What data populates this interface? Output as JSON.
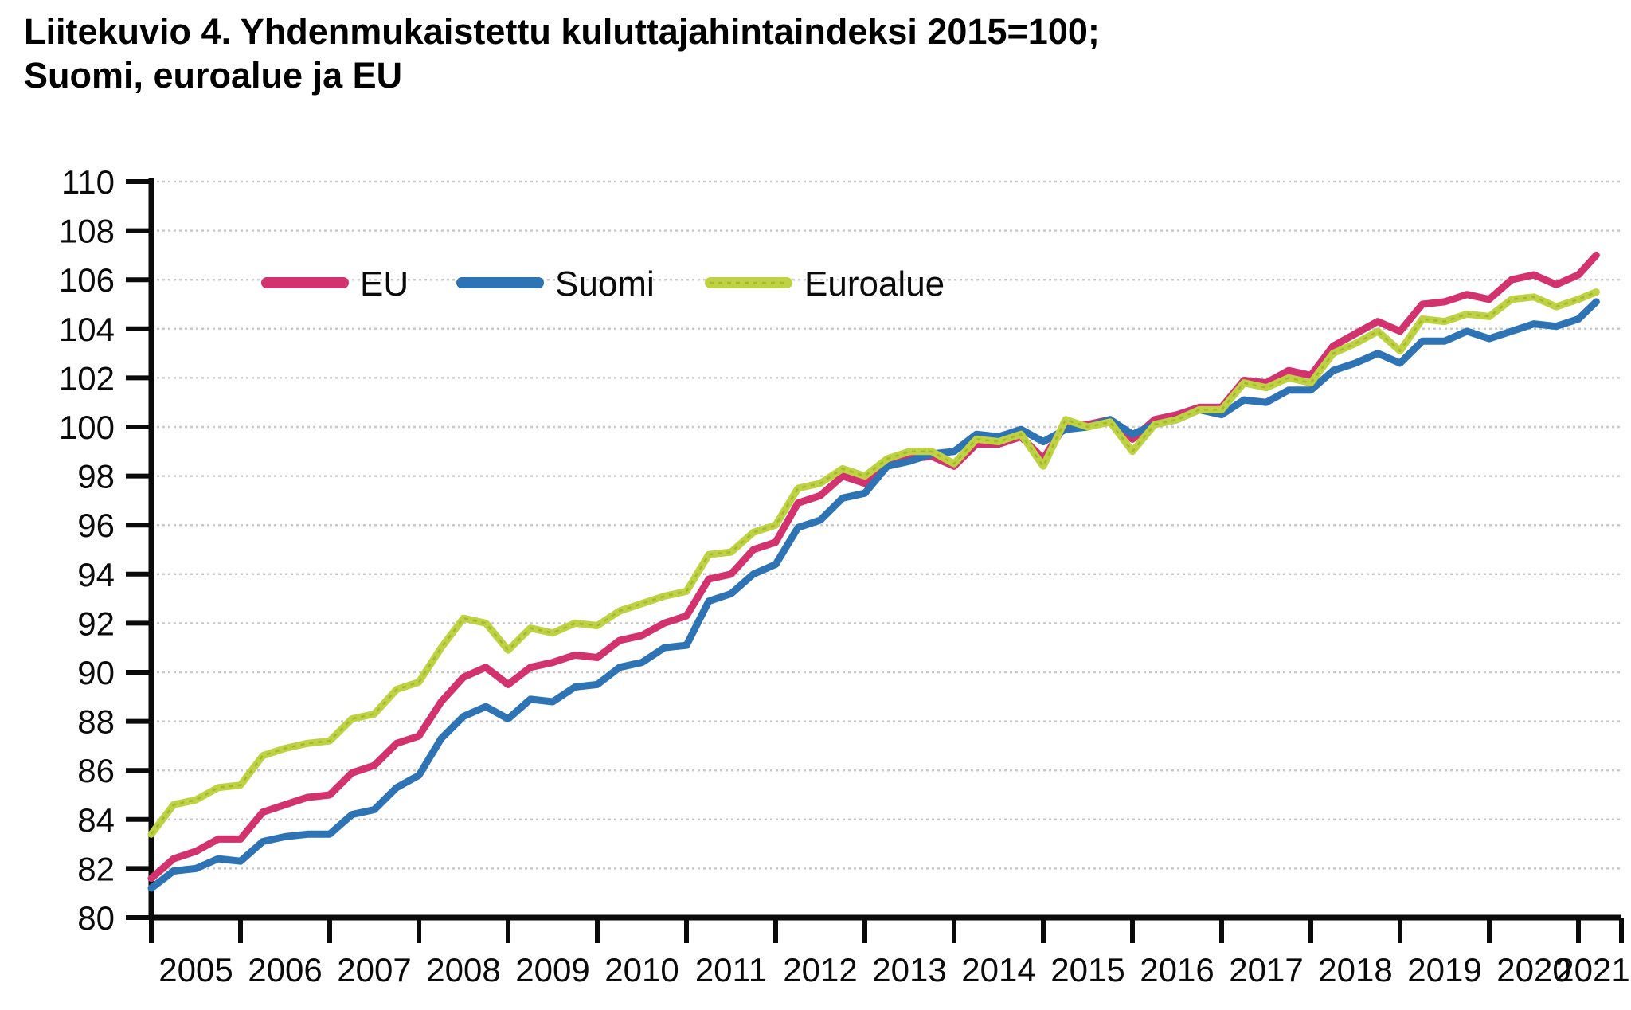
{
  "title": {
    "line1": "Liitekuvio 4. Yhdenmukaistettu kuluttajahintaindeksi 2015=100;",
    "line2": "Suomi, euroalue ja EU"
  },
  "chart_data": {
    "type": "line",
    "title": "Liitekuvio 4. Yhdenmukaistettu kuluttajahintaindeksi 2015=100; Suomi, euroalue ja EU",
    "xlabel": "",
    "ylabel": "",
    "ylim": [
      80,
      110
    ],
    "y_ticks": [
      80,
      82,
      84,
      86,
      88,
      90,
      92,
      94,
      96,
      98,
      100,
      102,
      104,
      106,
      108,
      110
    ],
    "x_tick_labels": [
      "2005",
      "2006",
      "2007",
      "2008",
      "2009",
      "2010",
      "2011",
      "2012",
      "2013",
      "2014",
      "2015",
      "2016",
      "2017",
      "2018",
      "2019",
      "2020",
      "2021"
    ],
    "grid": "horizontal-dotted",
    "gridline_color": "#c9c9c9",
    "axis_color": "#0a0a0a",
    "legend_position": "top-left-inside",
    "x": [
      2005.0,
      2005.25,
      2005.5,
      2005.75,
      2006.0,
      2006.25,
      2006.5,
      2006.75,
      2007.0,
      2007.25,
      2007.5,
      2007.75,
      2008.0,
      2008.25,
      2008.5,
      2008.75,
      2009.0,
      2009.25,
      2009.5,
      2009.75,
      2010.0,
      2010.25,
      2010.5,
      2010.75,
      2011.0,
      2011.25,
      2011.5,
      2011.75,
      2012.0,
      2012.25,
      2012.5,
      2012.75,
      2013.0,
      2013.25,
      2013.5,
      2013.75,
      2014.0,
      2014.25,
      2014.5,
      2014.75,
      2015.0,
      2015.25,
      2015.5,
      2015.75,
      2016.0,
      2016.25,
      2016.5,
      2016.75,
      2017.0,
      2017.25,
      2017.5,
      2017.75,
      2018.0,
      2018.25,
      2018.5,
      2018.75,
      2019.0,
      2019.25,
      2019.5,
      2019.75,
      2020.0,
      2020.25,
      2020.5,
      2020.75,
      2021.0,
      2021.2
    ],
    "series": [
      {
        "name": "EU",
        "color": "#d2336e",
        "values": [
          81.6,
          82.4,
          82.7,
          83.2,
          83.2,
          84.3,
          84.6,
          84.9,
          85.0,
          85.9,
          86.2,
          87.1,
          87.4,
          88.8,
          89.8,
          90.2,
          89.5,
          90.2,
          90.4,
          90.7,
          90.6,
          91.3,
          91.5,
          92.0,
          92.3,
          93.8,
          94.0,
          95.0,
          95.3,
          96.9,
          97.2,
          98.0,
          97.7,
          98.5,
          98.7,
          98.8,
          98.4,
          99.3,
          99.3,
          99.6,
          98.7,
          100.1,
          100.1,
          100.3,
          99.5,
          100.3,
          100.5,
          100.8,
          100.8,
          101.9,
          101.8,
          102.3,
          102.1,
          103.3,
          103.8,
          104.3,
          103.9,
          105.0,
          105.1,
          105.4,
          105.2,
          106.0,
          106.2,
          105.8,
          106.2,
          107.0
        ]
      },
      {
        "name": "Suomi",
        "color": "#2e74b5",
        "values": [
          81.2,
          81.9,
          82.0,
          82.4,
          82.3,
          83.1,
          83.3,
          83.4,
          83.4,
          84.2,
          84.4,
          85.3,
          85.8,
          87.3,
          88.2,
          88.6,
          88.1,
          88.9,
          88.8,
          89.4,
          89.5,
          90.2,
          90.4,
          91.0,
          91.1,
          92.9,
          93.2,
          94.0,
          94.4,
          95.9,
          96.2,
          97.1,
          97.3,
          98.4,
          98.6,
          98.9,
          99.0,
          99.7,
          99.6,
          99.9,
          99.4,
          99.9,
          100.0,
          100.3,
          99.7,
          100.1,
          100.3,
          100.7,
          100.5,
          101.1,
          101.0,
          101.5,
          101.5,
          102.3,
          102.6,
          103.0,
          102.6,
          103.5,
          103.5,
          103.9,
          103.6,
          103.9,
          104.2,
          104.1,
          104.4,
          105.1
        ]
      },
      {
        "name": "Euroalue",
        "color": "#bfd244",
        "accent": "#a4b82f",
        "values": [
          83.4,
          84.6,
          84.8,
          85.3,
          85.4,
          86.6,
          86.9,
          87.1,
          87.2,
          88.1,
          88.3,
          89.3,
          89.6,
          91.0,
          92.2,
          92.0,
          90.9,
          91.8,
          91.6,
          92.0,
          91.9,
          92.5,
          92.8,
          93.1,
          93.3,
          94.8,
          94.9,
          95.7,
          96.0,
          97.5,
          97.7,
          98.3,
          98.0,
          98.7,
          99.0,
          99.0,
          98.5,
          99.5,
          99.4,
          99.7,
          98.4,
          100.3,
          100.0,
          100.2,
          99.0,
          100.1,
          100.3,
          100.7,
          100.7,
          101.8,
          101.6,
          102.0,
          101.8,
          103.0,
          103.4,
          103.9,
          103.1,
          104.4,
          104.3,
          104.6,
          104.5,
          105.2,
          105.3,
          104.9,
          105.2,
          105.5
        ]
      }
    ]
  }
}
